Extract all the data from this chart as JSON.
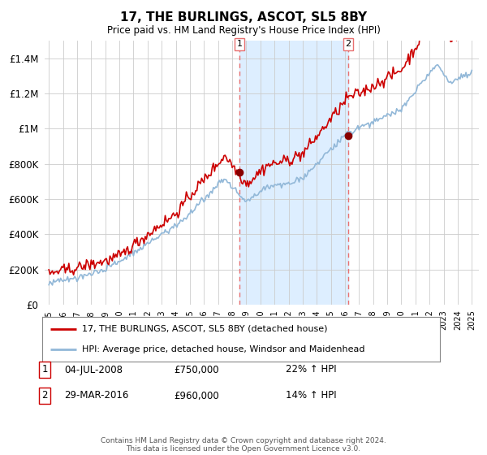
{
  "title": "17, THE BURLINGS, ASCOT, SL5 8BY",
  "subtitle": "Price paid vs. HM Land Registry's House Price Index (HPI)",
  "ylim": [
    0,
    1500000
  ],
  "yticks": [
    0,
    200000,
    400000,
    600000,
    800000,
    1000000,
    1200000,
    1400000
  ],
  "x_start_year": 1995,
  "x_end_year": 2025,
  "purchase_1_date": 2008.51,
  "purchase_1_price": 750000,
  "purchase_1_display": "04-JUL-2008",
  "purchase_1_hpi_pct": "22% ↑ HPI",
  "purchase_2_date": 2016.24,
  "purchase_2_price": 960000,
  "purchase_2_display": "29-MAR-2016",
  "purchase_2_hpi_pct": "14% ↑ HPI",
  "hpi_color": "#92b8d8",
  "price_color": "#cc0000",
  "shaded_color": "#ddeeff",
  "vline_color": "#e87070",
  "dot_color": "#880000",
  "legend_line1": "17, THE BURLINGS, ASCOT, SL5 8BY (detached house)",
  "legend_line2": "HPI: Average price, detached house, Windsor and Maidenhead",
  "footer_text": "Contains HM Land Registry data © Crown copyright and database right 2024.\nThis data is licensed under the Open Government Licence v3.0.",
  "noise_seed": 42
}
